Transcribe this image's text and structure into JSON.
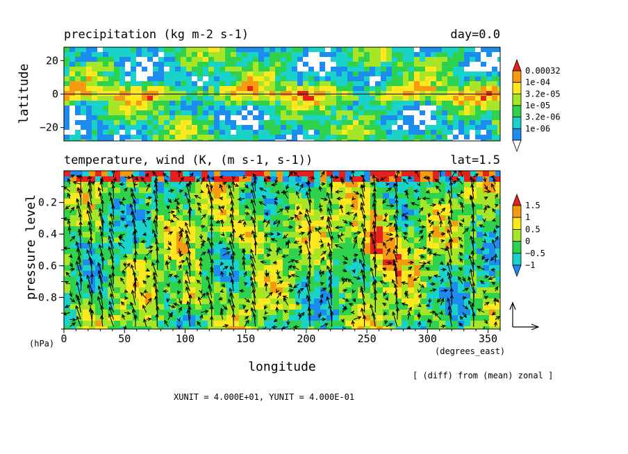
{
  "chart_data": [
    {
      "type": "heatmap",
      "title": "precipitation (kg m-2 s-1)",
      "title_right": "day=0.0",
      "ylabel": "latitude",
      "xlim": [
        0,
        360
      ],
      "ylim": [
        -28,
        28
      ],
      "yticks": [
        -20,
        0,
        20
      ],
      "yticklabels": [
        "−20",
        "0",
        "20"
      ],
      "reference_line_y": 0,
      "colorbar": {
        "levels": [
          "1e-06",
          "3.2e-06",
          "1e-05",
          "3.2e-05",
          "1e-04",
          "0.00032"
        ],
        "colors": [
          "#ffffff",
          "#1c8cf0",
          "#19d2c9",
          "#2fd24c",
          "#a6e626",
          "#ffe81f",
          "#f59a12",
          "#e6201c"
        ],
        "extend": "both"
      }
    },
    {
      "type": "heatmap",
      "title": "temperature, wind (K, (m s-1, s-1))",
      "title_right": "lat=1.5",
      "ylabel": "pressure level",
      "yunit": "(hPa)",
      "xlabel": "longitude",
      "xunit": "(degrees_east)",
      "xlim": [
        0,
        360
      ],
      "xticks": [
        0,
        50,
        100,
        150,
        200,
        250,
        300,
        350
      ],
      "ylim": [
        1.0,
        0.0
      ],
      "yticks": [
        0.2,
        0.4,
        0.6,
        0.8
      ],
      "overlay": "vector",
      "colorbar": {
        "levels": [
          "−1",
          "−0.5",
          "0",
          "0.5",
          "1",
          "1.5"
        ],
        "colors": [
          "#1c8cf0",
          "#19d2c9",
          "#2fd24c",
          "#a6e626",
          "#ffe81f",
          "#f59a12",
          "#e6201c"
        ],
        "extend": "both"
      },
      "note": "[ (diff) from (mean) zonal ]",
      "vector_units": "XUNIT = 4.000E+01, YUNIT = 4.000E-01"
    }
  ]
}
